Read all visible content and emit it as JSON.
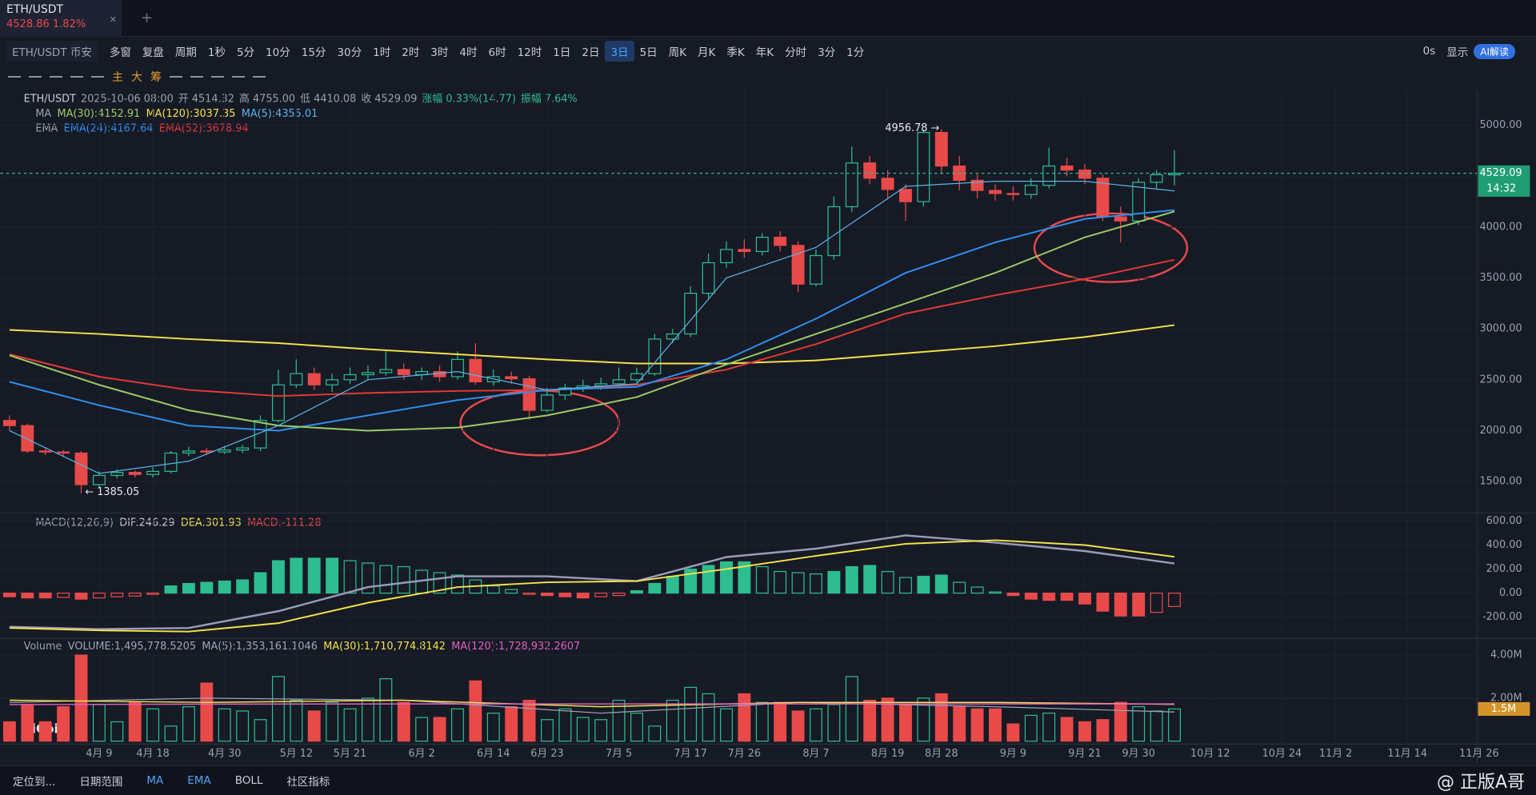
{
  "tabs": {
    "symbol": "ETH/USDT",
    "quote": "4528.86 1.82%"
  },
  "toolbar": {
    "symbol": "ETH/USDT 币安",
    "multi": "多窗",
    "replay": "复盘",
    "period": "周期",
    "periods": [
      "1秒",
      "5分",
      "10分",
      "15分",
      "30分",
      "1时",
      "2时",
      "3时",
      "4时",
      "6时",
      "12时",
      "1日",
      "2日",
      "3日",
      "5日",
      "周K",
      "月K",
      "季K",
      "年K",
      "分时",
      "3分",
      "1分"
    ],
    "active_period": 13,
    "right": [
      "0s",
      "显示",
      "AI解读"
    ],
    "draw_tools": [
      "主",
      "大",
      "筹"
    ]
  },
  "bottom_bar": {
    "items": [
      "定位到...",
      "日期范围",
      "MA",
      "EMA",
      "BOLL",
      "社区指标"
    ],
    "watermark": "AiCoin",
    "credit": "@ 正版A哥"
  },
  "chart_data": {
    "type": "candlestick",
    "legend": {
      "symbol": "ETH/USDT",
      "time": "2025-10-06 08:00",
      "items": [
        "开 4514.32",
        "高 4755.00",
        "低 4410.08",
        "收 4529.09",
        "涨幅 0.33%(14.77)",
        "振幅 7.64%"
      ]
    },
    "ma_legend": {
      "title": "MA",
      "items": [
        {
          "text": "MA(30):4152.91",
          "color": "#9ccc65"
        },
        {
          "text": "MA(120):3037.35",
          "color": "#f5e14b"
        },
        {
          "text": "MA(5):4355.01",
          "color": "#5ab4e6"
        }
      ]
    },
    "ema_legend": {
      "title": "EMA",
      "items": [
        {
          "text": "EMA(24):4167.64",
          "color": "#2f8ff0"
        },
        {
          "text": "EMA(52):3678.94",
          "color": "#e53935"
        }
      ]
    },
    "up_color": "#2dbd8f",
    "down_color": "#e84a4a",
    "ylim": [
      1210,
      5346
    ],
    "yticks": [
      {
        "value": 5000,
        "label": "5000.00"
      },
      {
        "value": 4500,
        "label": "4500.00"
      },
      {
        "value": 4000,
        "label": "4000.00"
      },
      {
        "value": 3500,
        "label": "3500.00"
      },
      {
        "value": 3000,
        "label": "3000.00"
      },
      {
        "value": 2500,
        "label": "2500.00"
      },
      {
        "value": 2000,
        "label": "2000.00"
      },
      {
        "value": 1500,
        "label": "1500.00"
      }
    ],
    "last_price_label": "4529.09",
    "countdown": "14:32",
    "high_label": "4956.78 →",
    "low_label": "← 1385.05",
    "xticks": [
      {
        "value": "2025-04-09",
        "label": "4月 9"
      },
      {
        "value": "2025-04-18",
        "label": "4月 18"
      },
      {
        "value": "2025-04-30",
        "label": "4月 30"
      },
      {
        "value": "2025-05-12",
        "label": "5月 12"
      },
      {
        "value": "2025-05-21",
        "label": "5月 21"
      },
      {
        "value": "2025-06-02",
        "label": "6月 2"
      },
      {
        "value": "2025-06-14",
        "label": "6月 14"
      },
      {
        "value": "2025-06-23",
        "label": "6月 23"
      },
      {
        "value": "2025-07-05",
        "label": "7月 5"
      },
      {
        "value": "2025-07-17",
        "label": "7月 17"
      },
      {
        "value": "2025-07-26",
        "label": "7月 26"
      },
      {
        "value": "2025-08-07",
        "label": "8月 7"
      },
      {
        "value": "2025-08-19",
        "label": "8月 19"
      },
      {
        "value": "2025-08-28",
        "label": "8月 28"
      },
      {
        "value": "2025-09-09",
        "label": "9月 9"
      },
      {
        "value": "2025-09-21",
        "label": "9月 21"
      },
      {
        "value": "2025-09-30",
        "label": "9月 30"
      },
      {
        "value": "2025-10-12",
        "label": "10月 12"
      },
      {
        "value": "2025-10-24",
        "label": "10月 24"
      },
      {
        "value": "2025-11-02",
        "label": "11月 2"
      },
      {
        "value": "2025-11-14",
        "label": "11月 14"
      },
      {
        "value": "2025-11-26",
        "label": "11月 26"
      }
    ],
    "candles": [
      {
        "t": "2025-03-25",
        "o": 2100,
        "h": 2150,
        "l": 2000,
        "c": 2050
      },
      {
        "t": "2025-03-28",
        "o": 2050,
        "h": 2070,
        "l": 1780,
        "c": 1800
      },
      {
        "t": "2025-03-31",
        "o": 1800,
        "h": 1830,
        "l": 1760,
        "c": 1790
      },
      {
        "t": "2025-04-03",
        "o": 1790,
        "h": 1810,
        "l": 1740,
        "c": 1780
      },
      {
        "t": "2025-04-06",
        "o": 1780,
        "h": 1800,
        "l": 1385.05,
        "c": 1470
      },
      {
        "t": "2025-04-09",
        "o": 1470,
        "h": 1600,
        "l": 1440,
        "c": 1560
      },
      {
        "t": "2025-04-12",
        "o": 1560,
        "h": 1620,
        "l": 1530,
        "c": 1590
      },
      {
        "t": "2025-04-15",
        "o": 1590,
        "h": 1610,
        "l": 1540,
        "c": 1570
      },
      {
        "t": "2025-04-18",
        "o": 1570,
        "h": 1640,
        "l": 1540,
        "c": 1600
      },
      {
        "t": "2025-04-21",
        "o": 1600,
        "h": 1800,
        "l": 1580,
        "c": 1780
      },
      {
        "t": "2025-04-24",
        "o": 1780,
        "h": 1840,
        "l": 1750,
        "c": 1800
      },
      {
        "t": "2025-04-27",
        "o": 1800,
        "h": 1830,
        "l": 1760,
        "c": 1790
      },
      {
        "t": "2025-04-30",
        "o": 1790,
        "h": 1850,
        "l": 1770,
        "c": 1810
      },
      {
        "t": "2025-05-03",
        "o": 1810,
        "h": 1860,
        "l": 1780,
        "c": 1830
      },
      {
        "t": "2025-05-06",
        "o": 1830,
        "h": 2150,
        "l": 1800,
        "c": 2100
      },
      {
        "t": "2025-05-09",
        "o": 2100,
        "h": 2600,
        "l": 2080,
        "c": 2450
      },
      {
        "t": "2025-05-12",
        "o": 2450,
        "h": 2700,
        "l": 2420,
        "c": 2560
      },
      {
        "t": "2025-05-15",
        "o": 2560,
        "h": 2620,
        "l": 2400,
        "c": 2450
      },
      {
        "t": "2025-05-18",
        "o": 2450,
        "h": 2560,
        "l": 2380,
        "c": 2500
      },
      {
        "t": "2025-05-21",
        "o": 2500,
        "h": 2620,
        "l": 2460,
        "c": 2550
      },
      {
        "t": "2025-05-24",
        "o": 2550,
        "h": 2640,
        "l": 2500,
        "c": 2570
      },
      {
        "t": "2025-05-27",
        "o": 2570,
        "h": 2780,
        "l": 2540,
        "c": 2600
      },
      {
        "t": "2025-05-30",
        "o": 2600,
        "h": 2660,
        "l": 2500,
        "c": 2550
      },
      {
        "t": "2025-06-02",
        "o": 2550,
        "h": 2620,
        "l": 2500,
        "c": 2580
      },
      {
        "t": "2025-06-05",
        "o": 2580,
        "h": 2640,
        "l": 2480,
        "c": 2530
      },
      {
        "t": "2025-06-08",
        "o": 2530,
        "h": 2780,
        "l": 2500,
        "c": 2700
      },
      {
        "t": "2025-06-11",
        "o": 2700,
        "h": 2860,
        "l": 2450,
        "c": 2480
      },
      {
        "t": "2025-06-14",
        "o": 2480,
        "h": 2600,
        "l": 2440,
        "c": 2530
      },
      {
        "t": "2025-06-17",
        "o": 2530,
        "h": 2580,
        "l": 2460,
        "c": 2510
      },
      {
        "t": "2025-06-20",
        "o": 2510,
        "h": 2540,
        "l": 2110,
        "c": 2200
      },
      {
        "t": "2025-06-23",
        "o": 2200,
        "h": 2420,
        "l": 2180,
        "c": 2350
      },
      {
        "t": "2025-06-26",
        "o": 2350,
        "h": 2460,
        "l": 2300,
        "c": 2420
      },
      {
        "t": "2025-06-29",
        "o": 2420,
        "h": 2500,
        "l": 2380,
        "c": 2440
      },
      {
        "t": "2025-07-02",
        "o": 2440,
        "h": 2520,
        "l": 2400,
        "c": 2460
      },
      {
        "t": "2025-07-05",
        "o": 2460,
        "h": 2620,
        "l": 2420,
        "c": 2500
      },
      {
        "t": "2025-07-08",
        "o": 2500,
        "h": 2620,
        "l": 2470,
        "c": 2560
      },
      {
        "t": "2025-07-11",
        "o": 2560,
        "h": 2950,
        "l": 2540,
        "c": 2900
      },
      {
        "t": "2025-07-14",
        "o": 2900,
        "h": 3000,
        "l": 2860,
        "c": 2950
      },
      {
        "t": "2025-07-17",
        "o": 2950,
        "h": 3420,
        "l": 2920,
        "c": 3350
      },
      {
        "t": "2025-07-20",
        "o": 3350,
        "h": 3740,
        "l": 3300,
        "c": 3650
      },
      {
        "t": "2025-07-23",
        "o": 3650,
        "h": 3860,
        "l": 3600,
        "c": 3780
      },
      {
        "t": "2025-07-26",
        "o": 3780,
        "h": 3880,
        "l": 3700,
        "c": 3760
      },
      {
        "t": "2025-07-29",
        "o": 3760,
        "h": 3940,
        "l": 3720,
        "c": 3900
      },
      {
        "t": "2025-08-01",
        "o": 3900,
        "h": 3960,
        "l": 3760,
        "c": 3820
      },
      {
        "t": "2025-08-04",
        "o": 3820,
        "h": 3860,
        "l": 3360,
        "c": 3440
      },
      {
        "t": "2025-08-07",
        "o": 3440,
        "h": 3780,
        "l": 3420,
        "c": 3720
      },
      {
        "t": "2025-08-10",
        "o": 3720,
        "h": 4300,
        "l": 3680,
        "c": 4200
      },
      {
        "t": "2025-08-13",
        "o": 4200,
        "h": 4790,
        "l": 4150,
        "c": 4630
      },
      {
        "t": "2025-08-16",
        "o": 4630,
        "h": 4700,
        "l": 4420,
        "c": 4480
      },
      {
        "t": "2025-08-19",
        "o": 4480,
        "h": 4560,
        "l": 4280,
        "c": 4370
      },
      {
        "t": "2025-08-22",
        "o": 4370,
        "h": 4420,
        "l": 4060,
        "c": 4250
      },
      {
        "t": "2025-08-25",
        "o": 4250,
        "h": 4956.78,
        "l": 4200,
        "c": 4930
      },
      {
        "t": "2025-08-28",
        "o": 4930,
        "h": 4960,
        "l": 4520,
        "c": 4600
      },
      {
        "t": "2025-08-31",
        "o": 4600,
        "h": 4700,
        "l": 4360,
        "c": 4460
      },
      {
        "t": "2025-09-03",
        "o": 4460,
        "h": 4520,
        "l": 4280,
        "c": 4360
      },
      {
        "t": "2025-09-06",
        "o": 4360,
        "h": 4420,
        "l": 4260,
        "c": 4330
      },
      {
        "t": "2025-09-09",
        "o": 4330,
        "h": 4400,
        "l": 4260,
        "c": 4320
      },
      {
        "t": "2025-09-12",
        "o": 4320,
        "h": 4480,
        "l": 4280,
        "c": 4410
      },
      {
        "t": "2025-09-15",
        "o": 4410,
        "h": 4780,
        "l": 4380,
        "c": 4600
      },
      {
        "t": "2025-09-18",
        "o": 4600,
        "h": 4680,
        "l": 4500,
        "c": 4560
      },
      {
        "t": "2025-09-21",
        "o": 4560,
        "h": 4620,
        "l": 4420,
        "c": 4480
      },
      {
        "t": "2025-09-24",
        "o": 4480,
        "h": 4520,
        "l": 4060,
        "c": 4100
      },
      {
        "t": "2025-09-27",
        "o": 4100,
        "h": 4200,
        "l": 3850,
        "c": 4060
      },
      {
        "t": "2025-09-30",
        "o": 4060,
        "h": 4480,
        "l": 4020,
        "c": 4440
      },
      {
        "t": "2025-10-03",
        "o": 4440,
        "h": 4560,
        "l": 4380,
        "c": 4514.32
      },
      {
        "t": "2025-10-06",
        "o": 4514.32,
        "h": 4755,
        "l": 4410.08,
        "c": 4529.09
      }
    ],
    "line_x": [
      "2025-03-25",
      "2025-04-09",
      "2025-04-24",
      "2025-05-09",
      "2025-05-24",
      "2025-06-08",
      "2025-06-23",
      "2025-07-08",
      "2025-07-23",
      "2025-08-07",
      "2025-08-22",
      "2025-09-06",
      "2025-09-21",
      "2025-10-06"
    ],
    "lines": [
      {
        "color": "#f5e14b",
        "width": 1.6,
        "values": [
          2990,
          2950,
          2900,
          2860,
          2800,
          2750,
          2700,
          2660,
          2660,
          2690,
          2760,
          2830,
          2920,
          3037.35
        ]
      },
      {
        "color": "#e53935",
        "width": 1.6,
        "values": [
          2750,
          2530,
          2400,
          2340,
          2370,
          2390,
          2400,
          2450,
          2600,
          2850,
          3150,
          3330,
          3490,
          3678.94
        ]
      },
      {
        "color": "#2f8ff0",
        "width": 1.6,
        "values": [
          2480,
          2250,
          2050,
          2000,
          2150,
          2300,
          2400,
          2430,
          2700,
          3100,
          3550,
          3850,
          4080,
          4167.64
        ]
      },
      {
        "color": "#9ccc65",
        "width": 1.6,
        "values": [
          2740,
          2450,
          2200,
          2050,
          2000,
          2030,
          2150,
          2330,
          2650,
          2950,
          3250,
          3550,
          3900,
          4152.91
        ]
      },
      {
        "color": "#5ab4e6",
        "width": 1,
        "values": [
          2000,
          1580,
          1700,
          2050,
          2500,
          2580,
          2400,
          2460,
          3500,
          3800,
          4400,
          4450,
          4450,
          4355.01
        ]
      }
    ],
    "macd": {
      "title": "MACD(12,26,9)",
      "items": [
        {
          "text": "DIF:246.29",
          "color": "#c8c8d0"
        },
        {
          "text": "DEA:301.93",
          "color": "#f5e14b"
        },
        {
          "text": "MACD:-111.28",
          "color": "#e84a4a"
        }
      ],
      "ylim": [
        -360,
        650
      ],
      "yticks": [
        {
          "value": 600,
          "label": "600.00"
        },
        {
          "value": 400,
          "label": "400.00"
        },
        {
          "value": 200,
          "label": "200.00"
        },
        {
          "value": 0,
          "label": "0.00"
        },
        {
          "value": -200,
          "label": "-200.00"
        }
      ],
      "lines": [
        {
          "color": "#9a9cb8",
          "width": 2,
          "values": [
            -280,
            -300,
            -290,
            -150,
            50,
            140,
            140,
            100,
            300,
            370,
            480,
            420,
            350,
            246.29
          ]
        },
        {
          "color": "#f5e14b",
          "width": 1.6,
          "values": [
            -290,
            -310,
            -320,
            -250,
            -80,
            50,
            90,
            100,
            200,
            310,
            410,
            440,
            400,
            301.93
          ]
        }
      ],
      "hist": [
        -30,
        -40,
        -40,
        -35,
        -50,
        -40,
        -30,
        -25,
        -10,
        60,
        80,
        90,
        100,
        110,
        170,
        270,
        290,
        290,
        290,
        270,
        250,
        230,
        220,
        190,
        170,
        150,
        110,
        60,
        30,
        -10,
        -20,
        -30,
        -40,
        -30,
        -20,
        20,
        80,
        140,
        200,
        230,
        260,
        260,
        220,
        180,
        170,
        160,
        180,
        220,
        230,
        180,
        130,
        140,
        150,
        90,
        50,
        10,
        -20,
        -50,
        -60,
        -60,
        -90,
        -150,
        -190,
        -190,
        -160,
        -111.28
      ]
    },
    "volume": {
      "title": "Volume",
      "items": [
        {
          "text": "VOLUME:1,495,778.5205",
          "color": "#a0a4b8"
        },
        {
          "text": "MA(5):1,353,161.1046",
          "color": "#a0a4b8"
        },
        {
          "text": "MA(30):1,710,774.8142",
          "color": "#f5e14b"
        },
        {
          "text": "MA(120):1,728,932.2607",
          "color": "#e060c0"
        }
      ],
      "ylim": [
        0,
        4640000
      ],
      "yticks": [
        {
          "value": 4000000,
          "label": "4.00M"
        },
        {
          "value": 2000000,
          "label": "2.00M"
        }
      ],
      "last_label": "1.5M",
      "values": [
        900000,
        1700000,
        900000,
        1600000,
        4000000,
        1700000,
        900000,
        1800000,
        1500000,
        700000,
        1600000,
        2700000,
        1500000,
        1400000,
        1000000,
        3000000,
        1900000,
        1400000,
        1800000,
        1500000,
        2000000,
        2900000,
        1800000,
        1100000,
        1100000,
        1500000,
        2800000,
        1300000,
        1600000,
        1900000,
        1000000,
        1500000,
        1100000,
        1000000,
        1900000,
        1300000,
        700000,
        1900000,
        2500000,
        2200000,
        1500000,
        2200000,
        1800000,
        1800000,
        1400000,
        1500000,
        1700000,
        3000000,
        1900000,
        2000000,
        1700000,
        2000000,
        2200000,
        1600000,
        1500000,
        1500000,
        800000,
        1200000,
        1300000,
        1100000,
        900000,
        1000000,
        1800000,
        1600000,
        1400000,
        1495778.5205
      ],
      "line_x": [
        "2025-03-25",
        "2025-04-27",
        "2025-05-30",
        "2025-07-02",
        "2025-08-04",
        "2025-09-06",
        "2025-10-06"
      ],
      "lines": [
        {
          "color": "#a0a4b8",
          "width": 1,
          "values": [
            1800000,
            2000000,
            1900000,
            1300000,
            1800000,
            1600000,
            1353161.1046
          ]
        },
        {
          "color": "#f5e14b",
          "width": 1.2,
          "values": [
            1900000,
            1800000,
            1900000,
            1600000,
            1800000,
            1800000,
            1710774.8142
          ]
        },
        {
          "color": "#e060c0",
          "width": 1.2,
          "values": [
            1700000,
            1720000,
            1730000,
            1730000,
            1730000,
            1730000,
            1728932.2607
          ]
        }
      ]
    }
  }
}
